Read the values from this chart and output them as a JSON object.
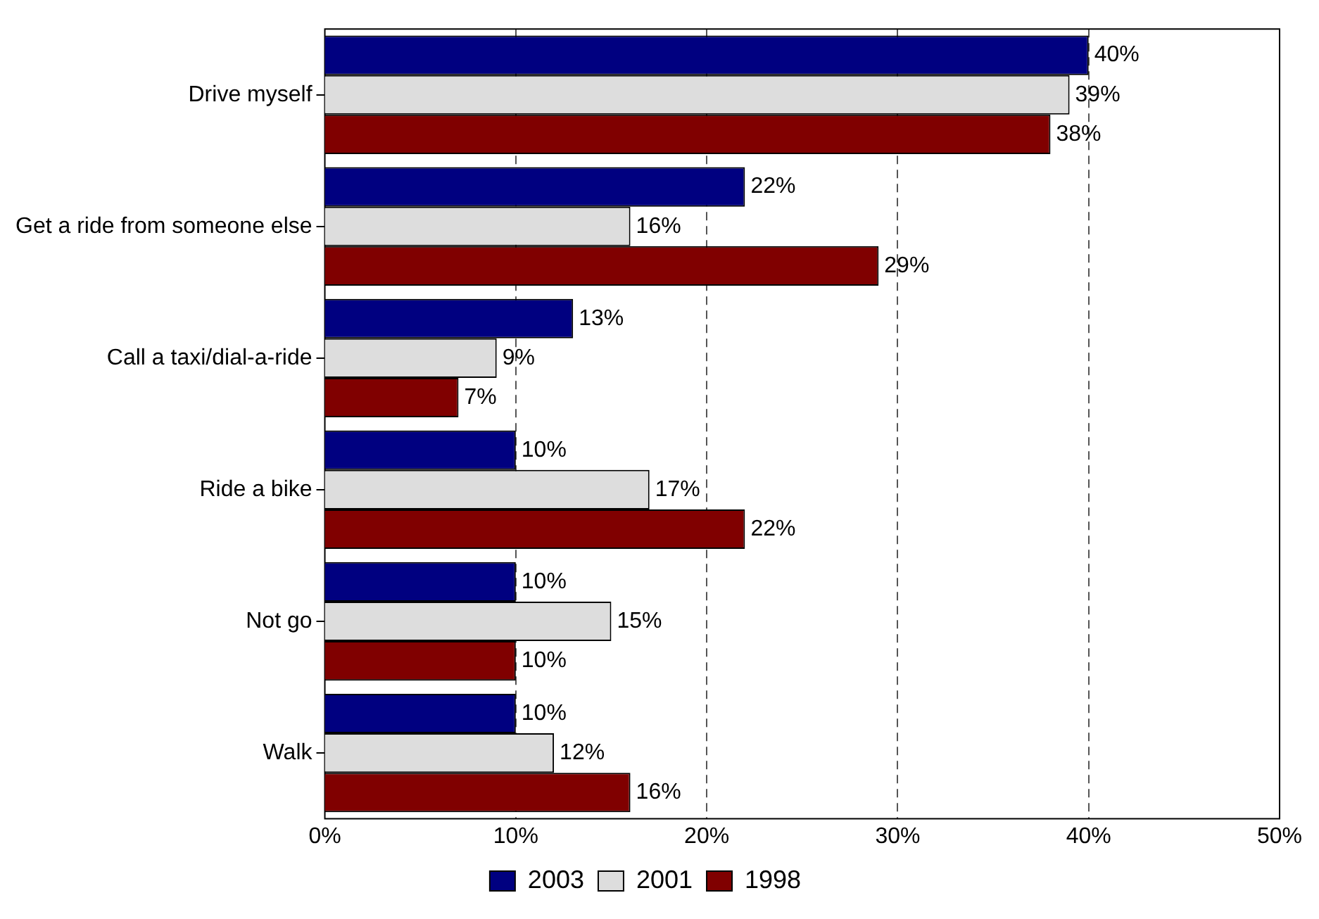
{
  "chart_data": {
    "type": "bar",
    "orientation": "horizontal",
    "categories": [
      "Drive myself",
      "Get a ride from someone else",
      "Call a taxi/dial-a-ride",
      "Ride a bike",
      "Not go",
      "Walk"
    ],
    "series": [
      {
        "name": "2003",
        "color": "#000080",
        "values": [
          40,
          22,
          13,
          10,
          10,
          10
        ],
        "value_labels": [
          "40%",
          "22%",
          "13%",
          "10%",
          "10%",
          "10%"
        ]
      },
      {
        "name": "2001",
        "color": "#dddddd",
        "values": [
          39,
          16,
          9,
          17,
          15,
          12
        ],
        "value_labels": [
          "39%",
          "16%",
          "9%",
          "17%",
          "15%",
          "12%"
        ]
      },
      {
        "name": "1998",
        "color": "#800000",
        "values": [
          38,
          29,
          7,
          22,
          10,
          16
        ],
        "value_labels": [
          "38%",
          "29%",
          "7%",
          "22%",
          "10%",
          "16%"
        ]
      }
    ],
    "xlim": [
      0,
      50
    ],
    "xticks": [
      {
        "value": 0,
        "label": "0%"
      },
      {
        "value": 10,
        "label": "10%"
      },
      {
        "value": 20,
        "label": "20%"
      },
      {
        "value": 30,
        "label": "30%"
      },
      {
        "value": 40,
        "label": "40%"
      },
      {
        "value": 50,
        "label": "50%"
      }
    ],
    "grid": "x",
    "legend": "bottom"
  }
}
